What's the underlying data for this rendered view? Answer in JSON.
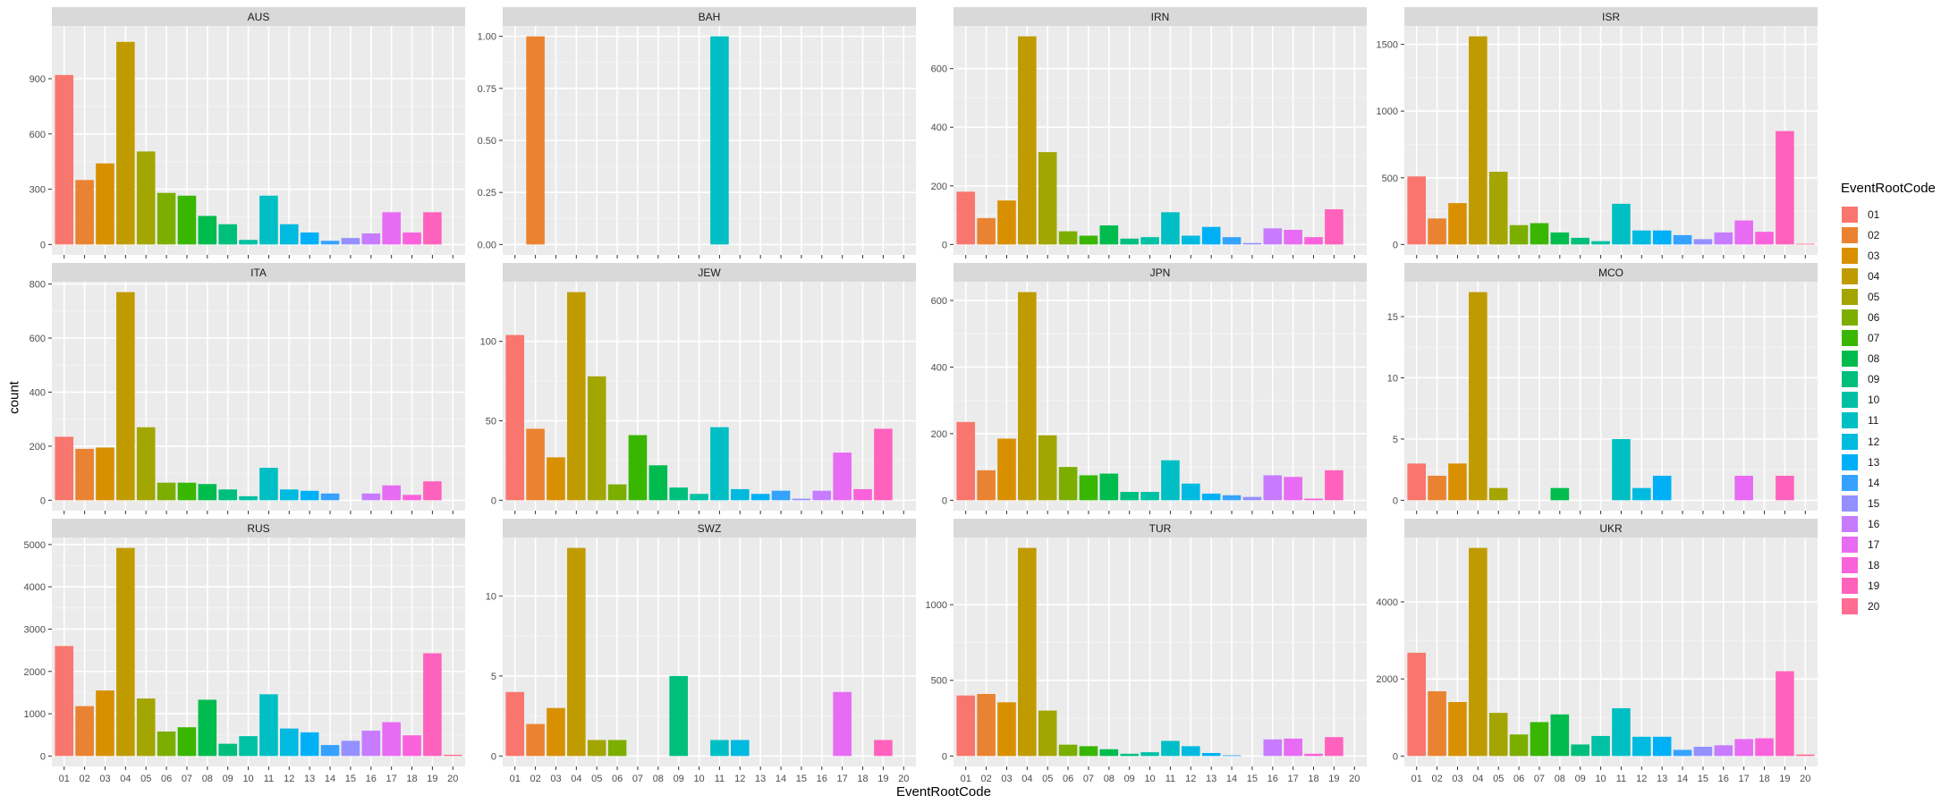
{
  "chart_data": {
    "type": "bar",
    "facet_by": "country",
    "xlabel": "EventRootCode",
    "ylabel": "count",
    "legend": {
      "title": "EventRootCode",
      "position": "right",
      "entries": [
        "01",
        "02",
        "03",
        "04",
        "05",
        "06",
        "07",
        "08",
        "09",
        "10",
        "11",
        "12",
        "13",
        "14",
        "15",
        "16",
        "17",
        "18",
        "19",
        "20"
      ]
    },
    "palette": [
      "#F8766D",
      "#EA8331",
      "#D89000",
      "#C09B00",
      "#A3A500",
      "#7CAE00",
      "#39B600",
      "#00BB4E",
      "#00BF7D",
      "#00C1A3",
      "#00BFC4",
      "#00BAE0",
      "#00B0F6",
      "#35A2FF",
      "#9590FF",
      "#C77CFF",
      "#E76BF3",
      "#FA62DB",
      "#FF62BC",
      "#FF6C91"
    ],
    "facets": [
      {
        "title": "AUS",
        "ylim": [
          0,
          1130
        ],
        "yticks": [
          0,
          300,
          600,
          900
        ],
        "ytick_labels": [
          "0",
          "300",
          "600",
          "900"
        ],
        "x": [
          "01",
          "02",
          "03",
          "04",
          "05",
          "06",
          "07",
          "08",
          "09",
          "10",
          "11",
          "12",
          "13",
          "14",
          "15",
          "16",
          "17",
          "18",
          "19",
          "20"
        ],
        "values": [
          920,
          350,
          440,
          1100,
          505,
          280,
          265,
          155,
          110,
          25,
          265,
          110,
          65,
          20,
          35,
          60,
          175,
          65,
          175,
          0
        ]
      },
      {
        "title": "BAH",
        "ylim": [
          0,
          1.0
        ],
        "yticks": [
          0,
          0.25,
          0.5,
          0.75,
          1.0
        ],
        "ytick_labels": [
          "0.00",
          "0.25",
          "0.50",
          "0.75",
          "1.00"
        ],
        "x": [
          "01",
          "02",
          "03",
          "04",
          "05",
          "06",
          "07",
          "08",
          "09",
          "10",
          "11",
          "12",
          "13",
          "14",
          "15",
          "16",
          "17",
          "18",
          "19",
          "20"
        ],
        "values": [
          0,
          1,
          0,
          0,
          0,
          0,
          0,
          0,
          0,
          0,
          1,
          0,
          0,
          0,
          0,
          0,
          0,
          0,
          0,
          0
        ]
      },
      {
        "title": "IRN",
        "ylim": [
          0,
          710
        ],
        "yticks": [
          0,
          200,
          400,
          600
        ],
        "ytick_labels": [
          "0",
          "200",
          "400",
          "600"
        ],
        "x": [
          "01",
          "02",
          "03",
          "04",
          "05",
          "06",
          "07",
          "08",
          "09",
          "10",
          "11",
          "12",
          "13",
          "14",
          "15",
          "16",
          "17",
          "18",
          "19",
          "20"
        ],
        "values": [
          180,
          90,
          150,
          710,
          315,
          45,
          30,
          65,
          20,
          25,
          110,
          30,
          60,
          25,
          5,
          55,
          50,
          25,
          120,
          0
        ]
      },
      {
        "title": "ISR",
        "ylim": [
          0,
          1560
        ],
        "yticks": [
          0,
          500,
          1000,
          1500
        ],
        "ytick_labels": [
          "0",
          "500",
          "1000",
          "1500"
        ],
        "x": [
          "01",
          "02",
          "03",
          "04",
          "05",
          "06",
          "07",
          "08",
          "09",
          "10",
          "11",
          "12",
          "13",
          "14",
          "15",
          "16",
          "17",
          "18",
          "19",
          "20"
        ],
        "values": [
          510,
          195,
          310,
          1560,
          545,
          145,
          160,
          90,
          50,
          25,
          305,
          105,
          105,
          70,
          40,
          90,
          180,
          95,
          850,
          5
        ]
      },
      {
        "title": "ITA",
        "ylim": [
          0,
          770
        ],
        "yticks": [
          0,
          200,
          400,
          600,
          800
        ],
        "ytick_labels": [
          "0",
          "200",
          "400",
          "600",
          "800"
        ],
        "x": [
          "01",
          "02",
          "03",
          "04",
          "05",
          "06",
          "07",
          "08",
          "09",
          "10",
          "11",
          "12",
          "13",
          "14",
          "15",
          "16",
          "17",
          "18",
          "19",
          "20"
        ],
        "values": [
          235,
          190,
          195,
          770,
          270,
          65,
          65,
          60,
          40,
          15,
          120,
          40,
          35,
          25,
          0,
          25,
          55,
          20,
          70,
          0
        ]
      },
      {
        "title": "JEW",
        "ylim": [
          0,
          131
        ],
        "yticks": [
          0,
          50,
          100
        ],
        "ytick_labels": [
          "0",
          "50",
          "100"
        ],
        "x": [
          "01",
          "02",
          "03",
          "04",
          "05",
          "06",
          "07",
          "08",
          "09",
          "10",
          "11",
          "12",
          "13",
          "14",
          "15",
          "16",
          "17",
          "18",
          "19",
          "20"
        ],
        "values": [
          104,
          45,
          27,
          131,
          78,
          10,
          41,
          22,
          8,
          4,
          46,
          7,
          4,
          6,
          1,
          6,
          30,
          7,
          45,
          0
        ]
      },
      {
        "title": "JPN",
        "ylim": [
          0,
          625
        ],
        "yticks": [
          0,
          200,
          400,
          600
        ],
        "ytick_labels": [
          "0",
          "200",
          "400",
          "600"
        ],
        "x": [
          "01",
          "02",
          "03",
          "04",
          "05",
          "06",
          "07",
          "08",
          "09",
          "10",
          "11",
          "12",
          "13",
          "14",
          "15",
          "16",
          "17",
          "18",
          "19",
          "20"
        ],
        "values": [
          235,
          90,
          185,
          625,
          195,
          100,
          75,
          80,
          25,
          25,
          120,
          50,
          20,
          15,
          10,
          75,
          70,
          5,
          90,
          0
        ]
      },
      {
        "title": "MCO",
        "ylim": [
          0,
          17
        ],
        "yticks": [
          0,
          5,
          10,
          15
        ],
        "ytick_labels": [
          "0",
          "5",
          "10",
          "15"
        ],
        "x": [
          "01",
          "02",
          "03",
          "04",
          "05",
          "06",
          "07",
          "08",
          "09",
          "10",
          "11",
          "12",
          "13",
          "14",
          "15",
          "16",
          "17",
          "18",
          "19",
          "20"
        ],
        "values": [
          3,
          2,
          3,
          17,
          1,
          0,
          0,
          1,
          0,
          0,
          5,
          1,
          2,
          0,
          0,
          0,
          2,
          0,
          2,
          0
        ]
      },
      {
        "title": "RUS",
        "ylim": [
          0,
          4920
        ],
        "yticks": [
          0,
          1000,
          2000,
          3000,
          4000,
          5000
        ],
        "ytick_labels": [
          "0",
          "1000",
          "2000",
          "3000",
          "4000",
          "5000"
        ],
        "x": [
          "01",
          "02",
          "03",
          "04",
          "05",
          "06",
          "07",
          "08",
          "09",
          "10",
          "11",
          "12",
          "13",
          "14",
          "15",
          "16",
          "17",
          "18",
          "19",
          "20"
        ],
        "values": [
          2600,
          1180,
          1550,
          4920,
          1360,
          580,
          680,
          1330,
          290,
          470,
          1460,
          650,
          560,
          260,
          360,
          600,
          800,
          490,
          2430,
          30
        ]
      },
      {
        "title": "SWZ",
        "ylim": [
          0,
          13
        ],
        "yticks": [
          0,
          5,
          10
        ],
        "ytick_labels": [
          "0",
          "5",
          "10"
        ],
        "x": [
          "01",
          "02",
          "03",
          "04",
          "05",
          "06",
          "07",
          "08",
          "09",
          "10",
          "11",
          "12",
          "13",
          "14",
          "15",
          "16",
          "17",
          "18",
          "19",
          "20"
        ],
        "values": [
          4,
          2,
          3,
          13,
          1,
          1,
          0,
          0,
          5,
          0,
          1,
          1,
          0,
          0,
          0,
          0,
          4,
          0,
          1,
          0
        ]
      },
      {
        "title": "TUR",
        "ylim": [
          0,
          1375
        ],
        "yticks": [
          0,
          500,
          1000
        ],
        "ytick_labels": [
          "0",
          "500",
          "1000"
        ],
        "x": [
          "01",
          "02",
          "03",
          "04",
          "05",
          "06",
          "07",
          "08",
          "09",
          "10",
          "11",
          "12",
          "13",
          "14",
          "15",
          "16",
          "17",
          "18",
          "19",
          "20"
        ],
        "values": [
          400,
          410,
          355,
          1375,
          300,
          75,
          65,
          45,
          15,
          25,
          100,
          65,
          20,
          5,
          0,
          110,
          115,
          15,
          125,
          0
        ]
      },
      {
        "title": "UKR",
        "ylim": [
          0,
          5400
        ],
        "yticks": [
          0,
          2000,
          4000
        ],
        "ytick_labels": [
          "0",
          "2000",
          "4000"
        ],
        "x": [
          "01",
          "02",
          "03",
          "04",
          "05",
          "06",
          "07",
          "08",
          "09",
          "10",
          "11",
          "12",
          "13",
          "14",
          "15",
          "16",
          "17",
          "18",
          "19",
          "20"
        ],
        "values": [
          2680,
          1680,
          1400,
          5400,
          1120,
          560,
          880,
          1080,
          300,
          520,
          1240,
          500,
          500,
          160,
          240,
          280,
          440,
          460,
          2200,
          40
        ]
      }
    ]
  }
}
